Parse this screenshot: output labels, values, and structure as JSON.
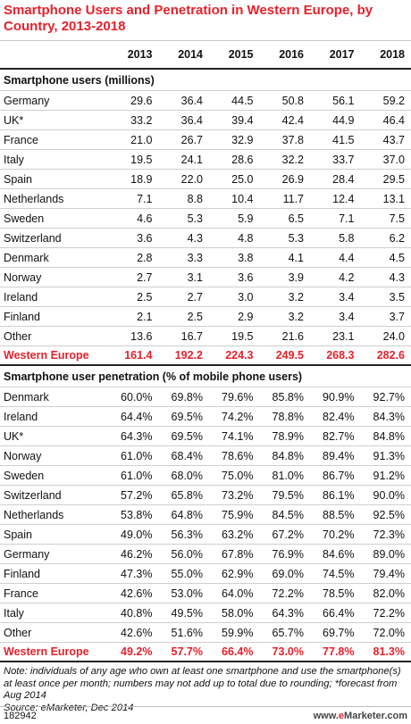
{
  "title": "Smartphone Users and Penetration in Western Europe, by Country, 2013-2018",
  "chart_data": {
    "type": "table",
    "years": [
      "2013",
      "2014",
      "2015",
      "2016",
      "2017",
      "2018"
    ],
    "sections": [
      {
        "title": "Smartphone users (millions)",
        "rows": [
          {
            "label": "Germany",
            "values": [
              "29.6",
              "36.4",
              "44.5",
              "50.8",
              "56.1",
              "59.2"
            ]
          },
          {
            "label": "UK*",
            "values": [
              "33.2",
              "36.4",
              "39.4",
              "42.4",
              "44.9",
              "46.4"
            ]
          },
          {
            "label": "France",
            "values": [
              "21.0",
              "26.7",
              "32.9",
              "37.8",
              "41.5",
              "43.7"
            ]
          },
          {
            "label": "Italy",
            "values": [
              "19.5",
              "24.1",
              "28.6",
              "32.2",
              "33.7",
              "37.0"
            ]
          },
          {
            "label": "Spain",
            "values": [
              "18.9",
              "22.0",
              "25.0",
              "26.9",
              "28.4",
              "29.5"
            ]
          },
          {
            "label": "Netherlands",
            "values": [
              "7.1",
              "8.8",
              "10.4",
              "11.7",
              "12.4",
              "13.1"
            ]
          },
          {
            "label": "Sweden",
            "values": [
              "4.6",
              "5.3",
              "5.9",
              "6.5",
              "7.1",
              "7.5"
            ]
          },
          {
            "label": "Switzerland",
            "values": [
              "3.6",
              "4.3",
              "4.8",
              "5.3",
              "5.8",
              "6.2"
            ]
          },
          {
            "label": "Denmark",
            "values": [
              "2.8",
              "3.3",
              "3.8",
              "4.1",
              "4.4",
              "4.5"
            ]
          },
          {
            "label": "Norway",
            "values": [
              "2.7",
              "3.1",
              "3.6",
              "3.9",
              "4.2",
              "4.3"
            ]
          },
          {
            "label": "Ireland",
            "values": [
              "2.5",
              "2.7",
              "3.0",
              "3.2",
              "3.4",
              "3.5"
            ]
          },
          {
            "label": "Finland",
            "values": [
              "2.1",
              "2.5",
              "2.9",
              "3.2",
              "3.4",
              "3.7"
            ]
          },
          {
            "label": "Other",
            "values": [
              "13.6",
              "16.7",
              "19.5",
              "21.6",
              "23.1",
              "24.0"
            ]
          }
        ],
        "total": {
          "label": "Western Europe",
          "values": [
            "161.4",
            "192.2",
            "224.3",
            "249.5",
            "268.3",
            "282.6"
          ]
        }
      },
      {
        "title": "Smartphone user penetration (% of mobile phone users)",
        "rows": [
          {
            "label": "Denmark",
            "values": [
              "60.0%",
              "69.8%",
              "79.6%",
              "85.8%",
              "90.9%",
              "92.7%"
            ]
          },
          {
            "label": "Ireland",
            "values": [
              "64.4%",
              "69.5%",
              "74.2%",
              "78.8%",
              "82.4%",
              "84.3%"
            ]
          },
          {
            "label": "UK*",
            "values": [
              "64.3%",
              "69.5%",
              "74.1%",
              "78.9%",
              "82.7%",
              "84.8%"
            ]
          },
          {
            "label": "Norway",
            "values": [
              "61.0%",
              "68.4%",
              "78.6%",
              "84.8%",
              "89.4%",
              "91.3%"
            ]
          },
          {
            "label": "Sweden",
            "values": [
              "61.0%",
              "68.0%",
              "75.0%",
              "81.0%",
              "86.7%",
              "91.2%"
            ]
          },
          {
            "label": "Switzerland",
            "values": [
              "57.2%",
              "65.8%",
              "73.2%",
              "79.5%",
              "86.1%",
              "90.0%"
            ]
          },
          {
            "label": "Netherlands",
            "values": [
              "53.8%",
              "64.8%",
              "75.9%",
              "84.5%",
              "88.5%",
              "92.5%"
            ]
          },
          {
            "label": "Spain",
            "values": [
              "49.0%",
              "56.3%",
              "63.2%",
              "67.2%",
              "70.2%",
              "72.3%"
            ]
          },
          {
            "label": "Germany",
            "values": [
              "46.2%",
              "56.0%",
              "67.8%",
              "76.9%",
              "84.6%",
              "89.0%"
            ]
          },
          {
            "label": "Finland",
            "values": [
              "47.3%",
              "55.0%",
              "62.9%",
              "69.0%",
              "74.5%",
              "79.4%"
            ]
          },
          {
            "label": "France",
            "values": [
              "42.6%",
              "53.0%",
              "64.0%",
              "72.2%",
              "78.5%",
              "82.0%"
            ]
          },
          {
            "label": "Italy",
            "values": [
              "40.8%",
              "49.5%",
              "58.0%",
              "64.3%",
              "66.4%",
              "72.2%"
            ]
          },
          {
            "label": "Other",
            "values": [
              "42.6%",
              "51.6%",
              "59.9%",
              "65.7%",
              "69.7%",
              "72.0%"
            ]
          }
        ],
        "total": {
          "label": "Western Europe",
          "values": [
            "49.2%",
            "57.7%",
            "66.4%",
            "73.0%",
            "77.8%",
            "81.3%"
          ]
        }
      }
    ]
  },
  "note": "Note: individuals of any age who own at least one smartphone and use the smartphone(s) at least once per month; numbers may not add up to total due to rounding; *forecast from Aug 2014",
  "source": "Source: eMarketer, Dec 2014",
  "footer": {
    "id": "182942",
    "brand_prefix": "www.",
    "brand_e": "e",
    "brand_rest": "Marketer",
    "brand_suffix": ".com"
  },
  "colors": {
    "accent": "#e8202a"
  }
}
